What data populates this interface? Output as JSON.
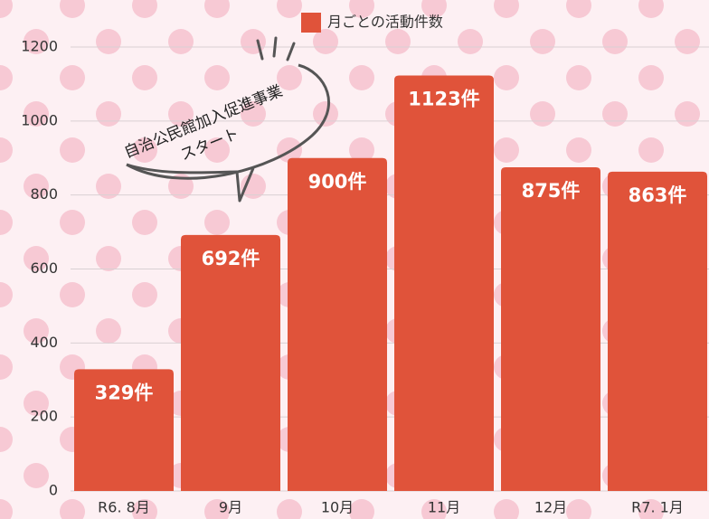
{
  "chart_data": {
    "type": "bar",
    "categories": [
      "R6. 8月",
      "9月",
      "10月",
      "11月",
      "12月",
      "R7. 1月"
    ],
    "series": [
      {
        "name": "月ごとの活動件数",
        "color": "#e0533a",
        "values": [
          329,
          692,
          900,
          1123,
          875,
          863
        ],
        "value_labels": [
          "329件",
          "692件",
          "900件",
          "1123件",
          "875件",
          "863件"
        ]
      }
    ],
    "ylim": [
      0,
      1200
    ],
    "yticks": [
      0,
      200,
      400,
      600,
      800,
      1000,
      1200
    ],
    "grid": true,
    "annotation": [
      "自治公民館加入促進事業",
      "スタート"
    ]
  }
}
